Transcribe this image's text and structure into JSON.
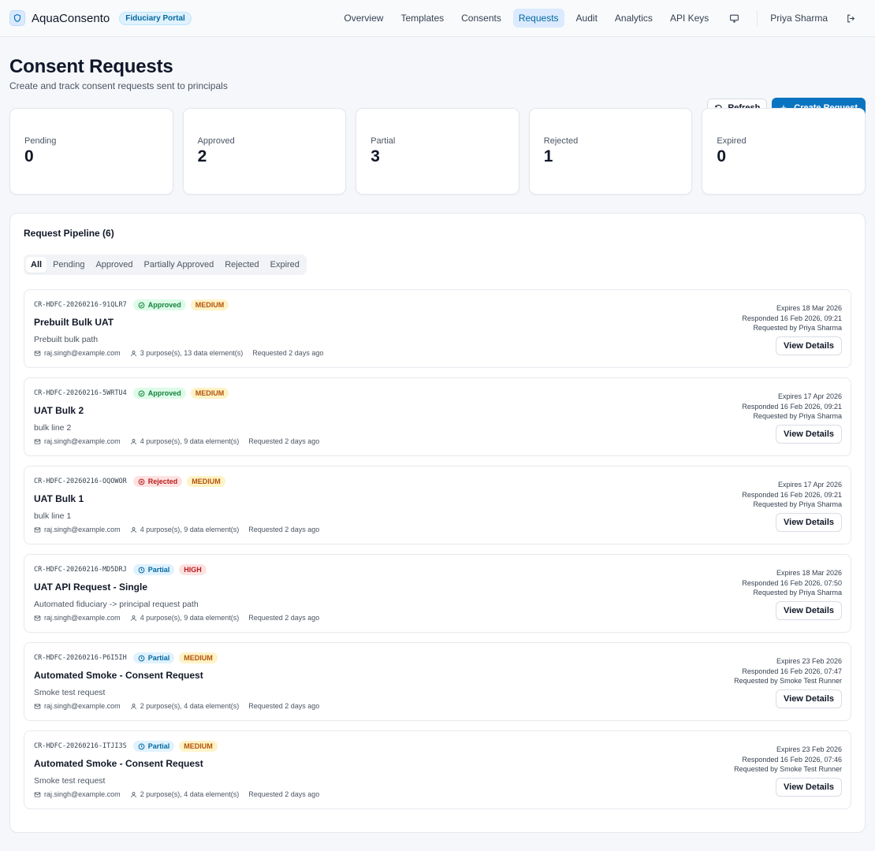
{
  "app": {
    "name": "AquaConsento",
    "portal_badge": "Fiduciary Portal"
  },
  "nav": {
    "items": [
      {
        "label": "Overview",
        "active": false
      },
      {
        "label": "Templates",
        "active": false
      },
      {
        "label": "Consents",
        "active": false
      },
      {
        "label": "Requests",
        "active": true
      },
      {
        "label": "Audit",
        "active": false
      },
      {
        "label": "Analytics",
        "active": false
      },
      {
        "label": "API Keys",
        "active": false
      }
    ],
    "user_name": "Priya Sharma"
  },
  "header": {
    "title": "Consent Requests",
    "subtitle": "Create and track consent requests sent to principals",
    "refresh_label": "Refresh",
    "create_label": "Create Request"
  },
  "stats": [
    {
      "label": "Pending",
      "value": "0"
    },
    {
      "label": "Approved",
      "value": "2"
    },
    {
      "label": "Partial",
      "value": "3"
    },
    {
      "label": "Rejected",
      "value": "1"
    },
    {
      "label": "Expired",
      "value": "0"
    }
  ],
  "pipeline": {
    "title": "Request Pipeline (6)",
    "tabs": [
      "All",
      "Pending",
      "Approved",
      "Partially Approved",
      "Rejected",
      "Expired"
    ],
    "active_tab": "All",
    "view_label": "View Details",
    "requests": [
      {
        "id": "CR-HDFC-20260216-91QLR7",
        "status": "Approved",
        "status_class": "status-approved",
        "status_icon": "check-circle-icon",
        "priority": "MEDIUM",
        "priority_class": "pri-medium",
        "title": "Prebuilt Bulk UAT",
        "description": "Prebuilt bulk path",
        "email": "raj.singh@example.com",
        "purposes": "3 purpose(s), 13 data element(s)",
        "requested": "Requested 2 days ago",
        "expires": "Expires 18 Mar 2026",
        "responded": "Responded 16 Feb 2026, 09:21",
        "requested_by": "Requested by Priya Sharma"
      },
      {
        "id": "CR-HDFC-20260216-5WRTU4",
        "status": "Approved",
        "status_class": "status-approved",
        "status_icon": "check-circle-icon",
        "priority": "MEDIUM",
        "priority_class": "pri-medium",
        "title": "UAT Bulk 2",
        "description": "bulk line 2",
        "email": "raj.singh@example.com",
        "purposes": "4 purpose(s), 9 data element(s)",
        "requested": "Requested 2 days ago",
        "expires": "Expires 17 Apr 2026",
        "responded": "Responded 16 Feb 2026, 09:21",
        "requested_by": "Requested by Priya Sharma"
      },
      {
        "id": "CR-HDFC-20260216-OQOWOR",
        "status": "Rejected",
        "status_class": "status-rejected",
        "status_icon": "x-circle-icon",
        "priority": "MEDIUM",
        "priority_class": "pri-medium",
        "title": "UAT Bulk 1",
        "description": "bulk line 1",
        "email": "raj.singh@example.com",
        "purposes": "4 purpose(s), 9 data element(s)",
        "requested": "Requested 2 days ago",
        "expires": "Expires 17 Apr 2026",
        "responded": "Responded 16 Feb 2026, 09:21",
        "requested_by": "Requested by Priya Sharma"
      },
      {
        "id": "CR-HDFC-20260216-MD5DRJ",
        "status": "Partial",
        "status_class": "status-partial",
        "status_icon": "clock-icon",
        "priority": "HIGH",
        "priority_class": "pri-high",
        "title": "UAT API Request - Single",
        "description": "Automated fiduciary -> principal request path",
        "email": "raj.singh@example.com",
        "purposes": "4 purpose(s), 9 data element(s)",
        "requested": "Requested 2 days ago",
        "expires": "Expires 18 Mar 2026",
        "responded": "Responded 16 Feb 2026, 07:50",
        "requested_by": "Requested by Priya Sharma"
      },
      {
        "id": "CR-HDFC-20260216-P6I5IH",
        "status": "Partial",
        "status_class": "status-partial",
        "status_icon": "clock-icon",
        "priority": "MEDIUM",
        "priority_class": "pri-medium",
        "title": "Automated Smoke - Consent Request",
        "description": "Smoke test request",
        "email": "raj.singh@example.com",
        "purposes": "2 purpose(s), 4 data element(s)",
        "requested": "Requested 2 days ago",
        "expires": "Expires 23 Feb 2026",
        "responded": "Responded 16 Feb 2026, 07:47",
        "requested_by": "Requested by Smoke Test Runner"
      },
      {
        "id": "CR-HDFC-20260216-ITJI3S",
        "status": "Partial",
        "status_class": "status-partial",
        "status_icon": "clock-icon",
        "priority": "MEDIUM",
        "priority_class": "pri-medium",
        "title": "Automated Smoke - Consent Request",
        "description": "Smoke test request",
        "email": "raj.singh@example.com",
        "purposes": "2 purpose(s), 4 data element(s)",
        "requested": "Requested 2 days ago",
        "expires": "Expires 23 Feb 2026",
        "responded": "Responded 16 Feb 2026, 07:46",
        "requested_by": "Requested by Smoke Test Runner"
      }
    ]
  }
}
